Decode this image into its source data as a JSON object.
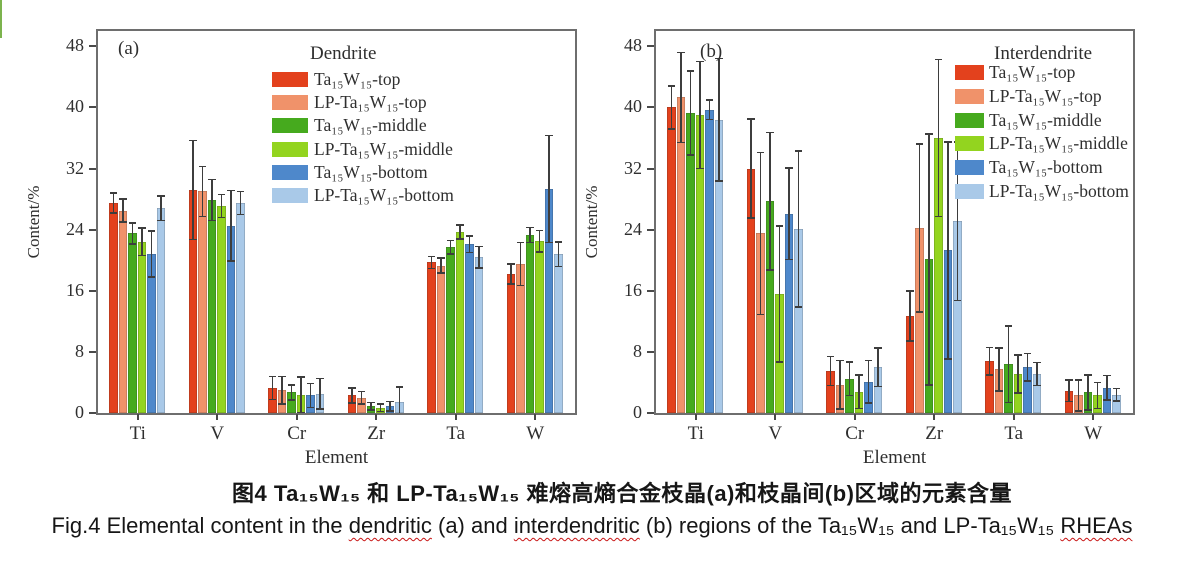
{
  "figure": {
    "caption_cn": "图4  Ta₁₅W₁₅ 和 LP-Ta₁₅W₁₅ 难熔高熵合金枝晶(a)和枝晶间(b)区域的元素含量",
    "caption_en_segments": [
      {
        "text": "Fig.4  Elemental content in the ",
        "wavy": false
      },
      {
        "text": "dendritic",
        "wavy": true
      },
      {
        "text": " (a) and ",
        "wavy": false
      },
      {
        "text": "interdendritic",
        "wavy": true
      },
      {
        "text": " (b) regions of the Ta₁₅W₁₅ and LP-Ta₁₅W₁₅ ",
        "wavy": false
      },
      {
        "text": "RHEAs",
        "wavy": true
      }
    ],
    "spellcheck_color": "#c81414"
  },
  "colors": {
    "frame": "#6e6e6e",
    "tick": "#4a4a4a",
    "error_bar": "#3d3d3d",
    "margin_mark": "#7cb34d",
    "series_red": "#e3411d",
    "series_salmon": "#f0926a",
    "series_green": "#46aa1e",
    "series_yellow_green": "#93d41f",
    "series_blue": "#4e88cb",
    "series_light_blue": "#a9c9e8"
  },
  "chart_data": [
    {
      "type": "bar",
      "panel_label": "(a)",
      "legend_title": "Dendrite",
      "legend_position": "top-center-inside",
      "xlabel": "Element",
      "ylabel": "Content/%",
      "ylim": [
        0,
        48
      ],
      "yticks": [
        0,
        8,
        16,
        24,
        32,
        40,
        48
      ],
      "grid": false,
      "error_bars": true,
      "categories": [
        "Ti",
        "V",
        "Cr",
        "Zr",
        "Ta",
        "W"
      ],
      "series": [
        {
          "name": "Ta₁₅W₁₅-top",
          "color": "#e3411d",
          "values": [
            27.5,
            29.2,
            3.3,
            2.3,
            19.7,
            18.2
          ],
          "errors": [
            1.3,
            6.5,
            1.5,
            1.0,
            0.8,
            1.3
          ]
        },
        {
          "name": "LP-Ta₁₅W₁₅-top",
          "color": "#f0926a",
          "values": [
            26.5,
            29.0,
            3.0,
            2.0,
            19.3,
            19.5
          ],
          "errors": [
            1.5,
            3.3,
            1.8,
            0.8,
            1.0,
            2.8
          ]
        },
        {
          "name": "Ta₁₅W₁₅-middle",
          "color": "#46aa1e",
          "values": [
            23.5,
            27.9,
            2.7,
            0.9,
            21.7,
            23.3
          ],
          "errors": [
            1.4,
            2.7,
            1.0,
            0.5,
            0.9,
            1.0
          ]
        },
        {
          "name": "LP-Ta₁₅W₁₅-middle",
          "color": "#93d41f",
          "values": [
            22.4,
            27.1,
            2.4,
            0.7,
            23.7,
            22.5
          ],
          "errors": [
            1.8,
            1.5,
            2.3,
            0.5,
            0.9,
            1.4
          ]
        },
        {
          "name": "Ta₁₅W₁₅-bottom",
          "color": "#4e88cb",
          "values": [
            20.8,
            24.5,
            2.3,
            0.9,
            22.1,
            29.3
          ],
          "errors": [
            3.0,
            4.6,
            1.6,
            0.6,
            1.1,
            7.0
          ]
        },
        {
          "name": "LP-Ta₁₅W₁₅-bottom",
          "color": "#a9c9e8",
          "values": [
            26.8,
            27.5,
            2.5,
            1.4,
            20.4,
            20.8
          ],
          "errors": [
            1.6,
            1.5,
            2.0,
            2.0,
            1.4,
            1.6
          ]
        }
      ]
    },
    {
      "type": "bar",
      "panel_label": "(b)",
      "legend_title": "Interdendrite",
      "legend_position": "top-right-inside",
      "xlabel": "Element",
      "ylabel": "Content/%",
      "ylim": [
        0,
        48
      ],
      "yticks": [
        0,
        8,
        16,
        24,
        32,
        40,
        48
      ],
      "grid": false,
      "error_bars": true,
      "categories": [
        "Ti",
        "V",
        "Cr",
        "Zr",
        "Ta",
        "W"
      ],
      "series": [
        {
          "name": "Ta₁₅W₁₅-top",
          "color": "#e3411d",
          "values": [
            40.0,
            32.0,
            5.5,
            12.7,
            6.8,
            2.9
          ],
          "errors": [
            2.8,
            6.5,
            1.9,
            3.3,
            1.8,
            1.4
          ]
        },
        {
          "name": "LP-Ta₁₅W₁₅-top",
          "color": "#f0926a",
          "values": [
            41.3,
            23.5,
            3.7,
            24.2,
            5.7,
            2.3
          ],
          "errors": [
            5.9,
            10.6,
            3.2,
            11.0,
            2.8,
            2.0
          ]
        },
        {
          "name": "Ta₁₅W₁₅-middle",
          "color": "#46aa1e",
          "values": [
            39.3,
            27.7,
            4.5,
            20.1,
            6.4,
            2.7
          ],
          "errors": [
            5.5,
            9.0,
            2.2,
            16.4,
            5.0,
            2.3
          ]
        },
        {
          "name": "LP-Ta₁₅W₁₅-middle",
          "color": "#93d41f",
          "values": [
            39.0,
            15.6,
            2.8,
            36.0,
            5.1,
            2.3
          ],
          "errors": [
            7.0,
            8.9,
            2.2,
            10.3,
            2.5,
            1.7
          ]
        },
        {
          "name": "Ta₁₅W₁₅-bottom",
          "color": "#4e88cb",
          "values": [
            39.7,
            26.1,
            4.1,
            21.3,
            6.0,
            3.3
          ],
          "errors": [
            1.3,
            6.0,
            2.8,
            14.2,
            1.8,
            1.6
          ]
        },
        {
          "name": "LP-Ta₁₅W₁₅-bottom",
          "color": "#a9c9e8",
          "values": [
            38.4,
            24.1,
            6.0,
            25.1,
            5.1,
            2.4
          ],
          "errors": [
            8.0,
            10.2,
            2.5,
            10.4,
            1.5,
            0.8
          ]
        }
      ]
    }
  ]
}
